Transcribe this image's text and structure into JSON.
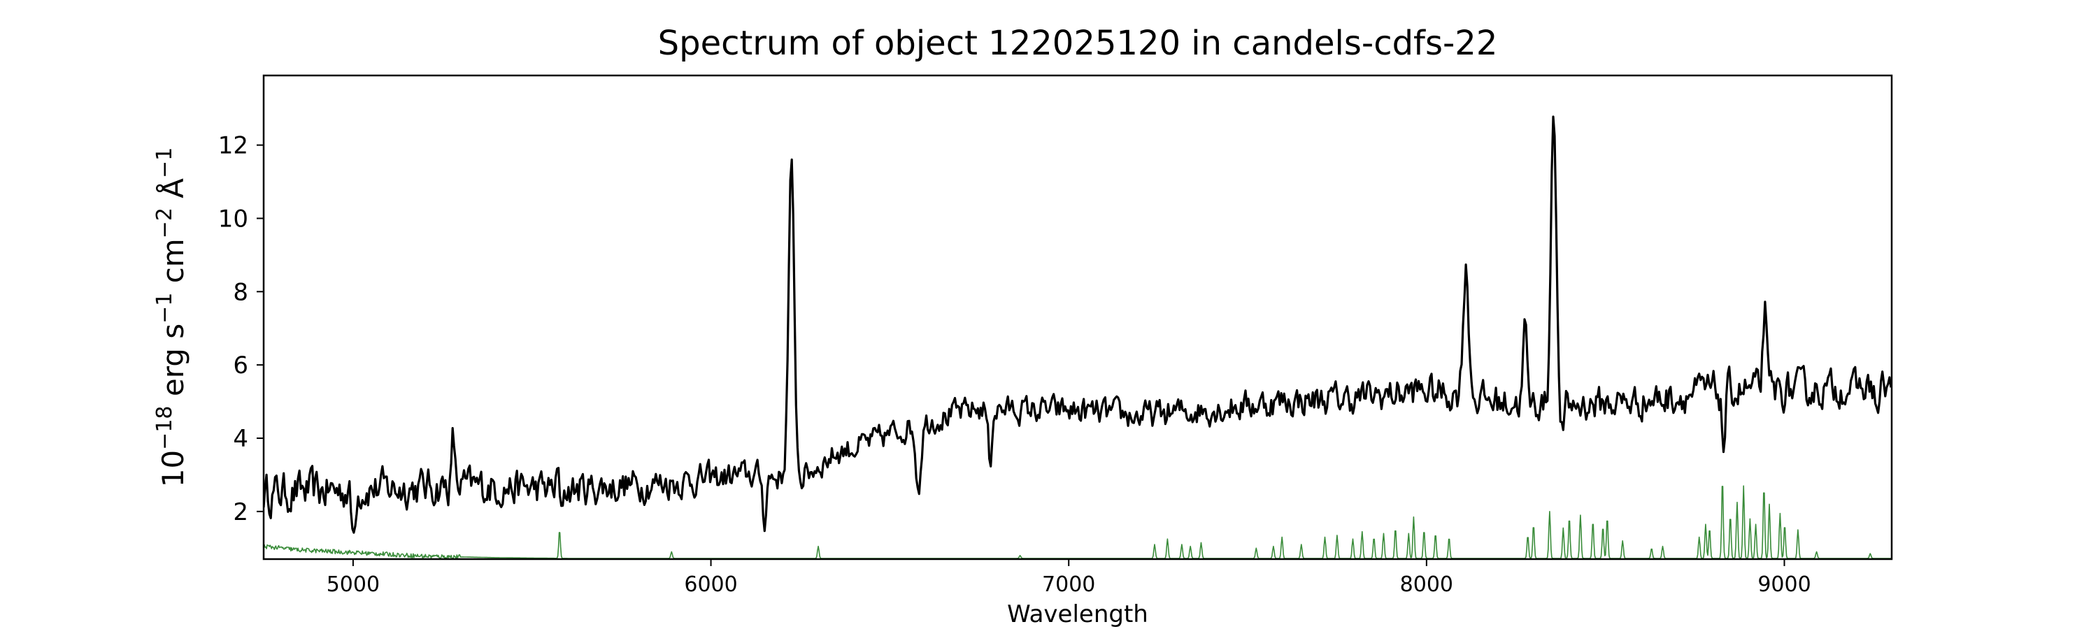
{
  "chart_data": {
    "type": "line",
    "title": "Spectrum of object 122025120 in candels-cdfs-22",
    "xlabel": "Wavelength",
    "ylabel_base": "10",
    "ylabel_exp": "−18",
    "ylabel_units": [
      {
        "t": " erg s",
        "sup": "−1"
      },
      {
        "t": " cm",
        "sup": "−2"
      },
      {
        "t": " Å",
        "sup": "−1"
      }
    ],
    "xlim": [
      4750,
      9300
    ],
    "ylim": [
      0.7,
      13.9
    ],
    "xticks": [
      5000,
      6000,
      7000,
      8000,
      9000
    ],
    "yticks": [
      2,
      4,
      6,
      8,
      10,
      12
    ],
    "grid": false,
    "series": [
      {
        "role": "flux",
        "color": "#000000",
        "baseline": [
          [
            4750,
            2.5
          ],
          [
            5000,
            2.6
          ],
          [
            5300,
            2.7
          ],
          [
            5600,
            2.6
          ],
          [
            5900,
            2.8
          ],
          [
            6100,
            3.0
          ],
          [
            6250,
            2.9
          ],
          [
            6350,
            3.6
          ],
          [
            6450,
            3.9
          ],
          [
            6550,
            4.3
          ],
          [
            6650,
            4.6
          ],
          [
            6750,
            4.8
          ],
          [
            7000,
            4.75
          ],
          [
            7200,
            4.6
          ],
          [
            7400,
            4.8
          ],
          [
            7600,
            5.0
          ],
          [
            7800,
            5.1
          ],
          [
            8000,
            5.3
          ],
          [
            8200,
            5.0
          ],
          [
            8400,
            4.9
          ],
          [
            8600,
            5.0
          ],
          [
            8800,
            5.3
          ],
          [
            9000,
            5.3
          ],
          [
            9300,
            5.4
          ]
        ],
        "noise": [
          [
            4750,
            0.55
          ],
          [
            5800,
            0.45
          ],
          [
            6200,
            0.35
          ],
          [
            6800,
            0.35
          ],
          [
            7500,
            0.4
          ],
          [
            8000,
            0.45
          ],
          [
            8500,
            0.45
          ],
          [
            9000,
            0.5
          ],
          [
            9300,
            0.4
          ]
        ],
        "peaks": [
          [
            6225,
            11.3,
            8
          ],
          [
            8110,
            8.6,
            8
          ],
          [
            8355,
            13.3,
            7
          ],
          [
            8275,
            7.1,
            5
          ],
          [
            8945,
            7.5,
            5
          ],
          [
            5280,
            4.0,
            4
          ],
          [
            5575,
            3.5,
            4
          ]
        ],
        "dips": [
          [
            5000,
            1.3,
            5
          ],
          [
            5580,
            1.4,
            4
          ],
          [
            6150,
            1.8,
            5
          ],
          [
            6580,
            2.7,
            7
          ],
          [
            6780,
            3.4,
            5
          ],
          [
            8380,
            4.1,
            5
          ],
          [
            8830,
            3.8,
            5
          ],
          [
            9260,
            4.7,
            5
          ]
        ]
      },
      {
        "role": "sky",
        "color": "#3a8c3a",
        "base": 0.72,
        "continuum": [
          [
            4750,
            1.05
          ],
          [
            4850,
            0.95
          ],
          [
            5000,
            0.88
          ],
          [
            5200,
            0.78
          ],
          [
            5400,
            0.74
          ],
          [
            5600,
            0.72
          ],
          [
            9300,
            0.72
          ]
        ],
        "lines": [
          [
            5577,
            1.5
          ],
          [
            5890,
            0.9
          ],
          [
            6300,
            1.05
          ],
          [
            6864,
            0.8
          ],
          [
            7240,
            1.1
          ],
          [
            7276,
            1.25
          ],
          [
            7316,
            1.1
          ],
          [
            7340,
            1.05
          ],
          [
            7370,
            1.15
          ],
          [
            7524,
            1.0
          ],
          [
            7572,
            1.05
          ],
          [
            7596,
            1.3
          ],
          [
            7650,
            1.1
          ],
          [
            7716,
            1.3
          ],
          [
            7750,
            1.35
          ],
          [
            7794,
            1.25
          ],
          [
            7820,
            1.45
          ],
          [
            7853,
            1.3
          ],
          [
            7880,
            1.4
          ],
          [
            7913,
            1.55
          ],
          [
            7950,
            1.4
          ],
          [
            7964,
            1.85
          ],
          [
            7993,
            1.5
          ],
          [
            8025,
            1.4
          ],
          [
            8063,
            1.3
          ],
          [
            8283,
            1.35
          ],
          [
            8299,
            1.65
          ],
          [
            8344,
            2.0
          ],
          [
            8382,
            1.55
          ],
          [
            8399,
            1.85
          ],
          [
            8430,
            1.9
          ],
          [
            8465,
            1.75
          ],
          [
            8493,
            1.6
          ],
          [
            8505,
            1.85
          ],
          [
            8548,
            1.2
          ],
          [
            8629,
            1.0
          ],
          [
            8660,
            1.05
          ],
          [
            8762,
            1.3
          ],
          [
            8780,
            1.65
          ],
          [
            8791,
            1.55
          ],
          [
            8827,
            2.9
          ],
          [
            8849,
            1.9
          ],
          [
            8868,
            2.25
          ],
          [
            8886,
            2.7
          ],
          [
            8904,
            1.8
          ],
          [
            8920,
            1.65
          ],
          [
            8943,
            2.7
          ],
          [
            8958,
            2.2
          ],
          [
            8988,
            1.95
          ],
          [
            9001,
            1.65
          ],
          [
            9038,
            1.5
          ],
          [
            9090,
            0.9
          ],
          [
            9240,
            0.85
          ]
        ]
      }
    ]
  }
}
